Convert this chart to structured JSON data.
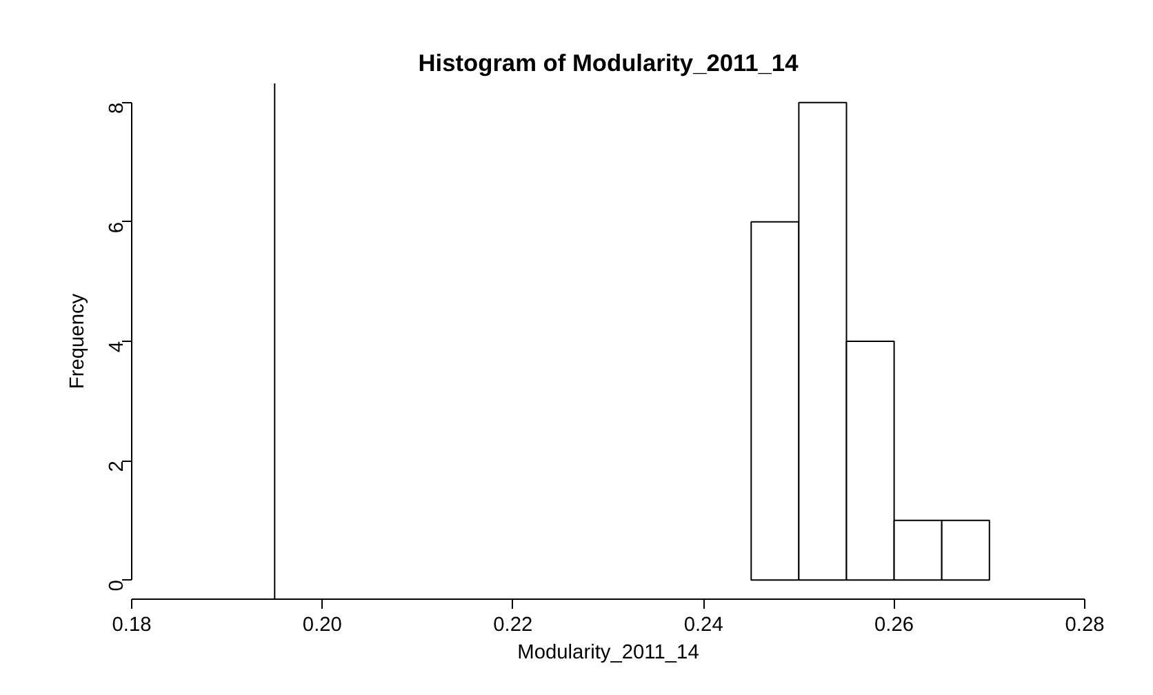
{
  "chart_data": {
    "type": "histogram",
    "title": "Histogram of Modularity_2011_14",
    "xlabel": "Modularity_2011_14",
    "ylabel": "Frequency",
    "bins": [
      0.245,
      0.25,
      0.255,
      0.26,
      0.265,
      0.27
    ],
    "values": [
      6,
      8,
      4,
      1,
      1
    ],
    "color": "#ffffff",
    "xlim": [
      0.18,
      0.28
    ],
    "ylim": [
      -0.32,
      8.32
    ],
    "xticks": [
      0.18,
      {
        "value": 0.2,
        "label": "0.20"
      },
      0.22,
      0.24,
      0.26,
      0.28
    ],
    "yticks": [
      0,
      2,
      4,
      6,
      8
    ],
    "ref_lines": [
      {
        "axis": "x",
        "value": 0.195,
        "color": "#000000"
      }
    ],
    "grid": false
  }
}
